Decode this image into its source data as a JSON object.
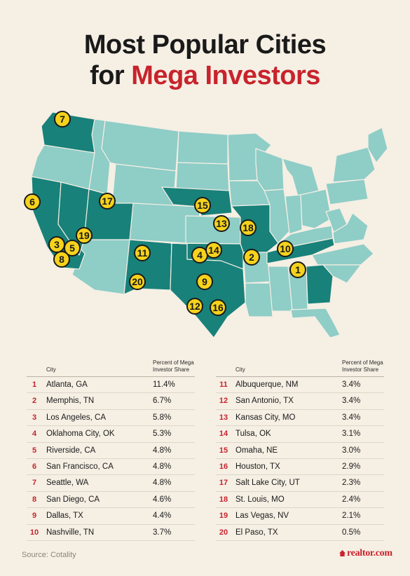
{
  "title": {
    "line1": "Most Popular Cities",
    "line2_prefix": "for ",
    "line2_accent": "Mega Investors"
  },
  "colors": {
    "accent": "#c8232c",
    "marker": "#f6d21c",
    "state_light": "#8fcdc7",
    "state_dark": "#18817a",
    "background": "#f5efe4"
  },
  "map": {
    "highlighted_states": [
      "WA",
      "CA",
      "NV",
      "UT",
      "NM",
      "TX",
      "NE",
      "MO",
      "OK",
      "TN",
      "GA"
    ],
    "markers": [
      "1",
      "2",
      "3",
      "4",
      "5",
      "6",
      "7",
      "8",
      "9",
      "10",
      "11",
      "12",
      "13",
      "14",
      "15",
      "16",
      "17",
      "18",
      "19",
      "20"
    ]
  },
  "table": {
    "header": {
      "city": "City",
      "share": "Percent of Mega Investor Share"
    },
    "left": [
      {
        "rank": "1",
        "city": "Atlanta, GA",
        "share": "11.4%"
      },
      {
        "rank": "2",
        "city": "Memphis, TN",
        "share": "6.7%"
      },
      {
        "rank": "3",
        "city": "Los Angeles, CA",
        "share": "5.8%"
      },
      {
        "rank": "4",
        "city": "Oklahoma City, OK",
        "share": "5.3%"
      },
      {
        "rank": "5",
        "city": "Riverside, CA",
        "share": "4.8%"
      },
      {
        "rank": "6",
        "city": "San Francisco, CA",
        "share": "4.8%"
      },
      {
        "rank": "7",
        "city": "Seattle, WA",
        "share": "4.8%"
      },
      {
        "rank": "8",
        "city": "San Diego, CA",
        "share": "4.6%"
      },
      {
        "rank": "9",
        "city": "Dallas, TX",
        "share": "4.4%"
      },
      {
        "rank": "10",
        "city": "Nashville, TN",
        "share": "3.7%"
      }
    ],
    "right": [
      {
        "rank": "11",
        "city": "Albuquerque, NM",
        "share": "3.4%"
      },
      {
        "rank": "12",
        "city": "San Antonio, TX",
        "share": "3.4%"
      },
      {
        "rank": "13",
        "city": "Kansas City, MO",
        "share": "3.4%"
      },
      {
        "rank": "14",
        "city": "Tulsa, OK",
        "share": "3.1%"
      },
      {
        "rank": "15",
        "city": "Omaha, NE",
        "share": "3.0%"
      },
      {
        "rank": "16",
        "city": "Houston, TX",
        "share": "2.9%"
      },
      {
        "rank": "17",
        "city": "Salt Lake City, UT",
        "share": "2.3%"
      },
      {
        "rank": "18",
        "city": "St. Louis, MO",
        "share": "2.4%"
      },
      {
        "rank": "19",
        "city": "Las Vegas, NV",
        "share": "2.1%"
      },
      {
        "rank": "20",
        "city": "El Paso, TX",
        "share": "0.5%"
      }
    ]
  },
  "footer": {
    "source": "Source: Cotality",
    "brand": "realtor.com"
  }
}
